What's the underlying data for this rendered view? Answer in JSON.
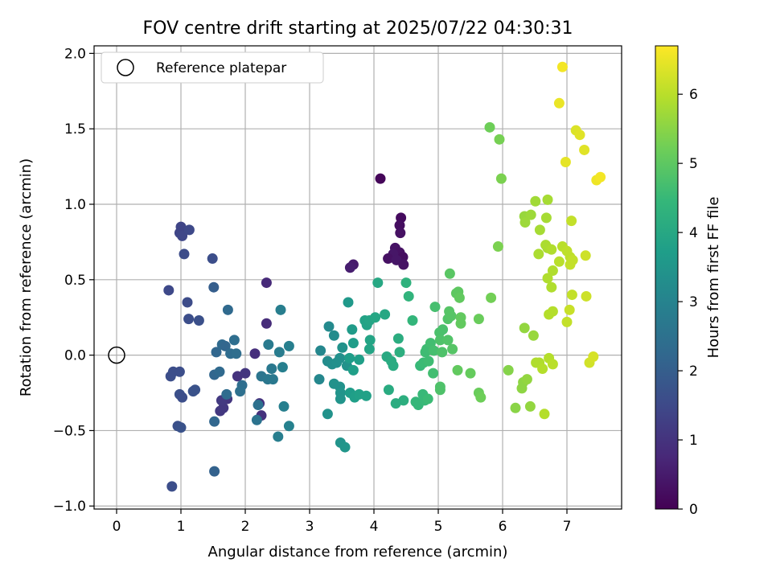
{
  "chart_data": {
    "type": "scatter",
    "title": "FOV centre drift starting at 2025/07/22 04:30:31",
    "xlabel": "Angular distance from reference (arcmin)",
    "ylabel": "Rotation from reference (arcmin)",
    "xlim": [
      -0.35,
      7.85
    ],
    "ylim": [
      -1.02,
      2.05
    ],
    "xticks": [
      0,
      1,
      2,
      3,
      4,
      5,
      6,
      7
    ],
    "yticks": [
      -1.0,
      -0.5,
      0.0,
      0.5,
      1.0,
      1.5,
      2.0
    ],
    "xtick_labels": [
      "0",
      "1",
      "2",
      "3",
      "4",
      "5",
      "6",
      "7"
    ],
    "ytick_labels": [
      "−1.0",
      "−0.5",
      "0.0",
      "0.5",
      "1.0",
      "1.5",
      "2.0"
    ],
    "grid": true,
    "legend": {
      "position": "top-left",
      "entries": [
        "Reference platepar"
      ]
    },
    "reference_point": {
      "x": 0,
      "y": 0
    },
    "colorbar": {
      "label": "Hours from first FF file",
      "range": [
        0,
        6.7
      ],
      "ticks": [
        0,
        1,
        2,
        3,
        4,
        5,
        6
      ],
      "tick_labels": [
        "0",
        "1",
        "2",
        "3",
        "4",
        "5",
        "6"
      ],
      "colormap": "viridis"
    },
    "colormap_stops": [
      "#440154",
      "#482878",
      "#3e4989",
      "#31688e",
      "#26828e",
      "#1f9e89",
      "#35b779",
      "#6ece58",
      "#b5de2b",
      "#fde725"
    ],
    "points": [
      {
        "x": 4.1,
        "y": 1.17,
        "h": 0.1
      },
      {
        "x": 4.42,
        "y": 0.91,
        "h": 0.2
      },
      {
        "x": 4.4,
        "y": 0.86,
        "h": 0.25
      },
      {
        "x": 4.41,
        "y": 0.81,
        "h": 0.3
      },
      {
        "x": 4.33,
        "y": 0.71,
        "h": 0.35
      },
      {
        "x": 4.4,
        "y": 0.68,
        "h": 0.3
      },
      {
        "x": 4.3,
        "y": 0.67,
        "h": 0.4
      },
      {
        "x": 4.45,
        "y": 0.65,
        "h": 0.25
      },
      {
        "x": 4.22,
        "y": 0.64,
        "h": 0.3
      },
      {
        "x": 4.35,
        "y": 0.63,
        "h": 0.4
      },
      {
        "x": 4.46,
        "y": 0.6,
        "h": 0.35
      },
      {
        "x": 3.68,
        "y": 0.6,
        "h": 0.5
      },
      {
        "x": 3.63,
        "y": 0.58,
        "h": 0.55
      },
      {
        "x": 2.33,
        "y": 0.48,
        "h": 0.8
      },
      {
        "x": 2.33,
        "y": 0.21,
        "h": 0.85
      },
      {
        "x": 2.15,
        "y": 0.01,
        "h": 0.9
      },
      {
        "x": 2.25,
        "y": -0.4,
        "h": 0.95
      },
      {
        "x": 1.88,
        "y": -0.14,
        "h": 1.0
      },
      {
        "x": 2.0,
        "y": -0.12,
        "h": 1.05
      },
      {
        "x": 1.72,
        "y": -0.29,
        "h": 1.05
      },
      {
        "x": 1.66,
        "y": -0.35,
        "h": 1.1
      },
      {
        "x": 1.61,
        "y": -0.37,
        "h": 1.1
      },
      {
        "x": 1.63,
        "y": -0.3,
        "h": 1.15
      },
      {
        "x": 2.22,
        "y": -0.32,
        "h": 0.95
      },
      {
        "x": 1.0,
        "y": 0.85,
        "h": 1.4
      },
      {
        "x": 0.98,
        "y": 0.81,
        "h": 1.4
      },
      {
        "x": 1.02,
        "y": 0.79,
        "h": 1.45
      },
      {
        "x": 1.13,
        "y": 0.83,
        "h": 1.5
      },
      {
        "x": 1.05,
        "y": 0.67,
        "h": 1.55
      },
      {
        "x": 1.49,
        "y": 0.64,
        "h": 1.6
      },
      {
        "x": 0.81,
        "y": 0.43,
        "h": 1.5
      },
      {
        "x": 1.1,
        "y": 0.35,
        "h": 1.55
      },
      {
        "x": 1.12,
        "y": 0.24,
        "h": 1.6
      },
      {
        "x": 1.28,
        "y": 0.23,
        "h": 1.65
      },
      {
        "x": 0.88,
        "y": -0.11,
        "h": 1.6
      },
      {
        "x": 0.98,
        "y": -0.11,
        "h": 1.6
      },
      {
        "x": 0.84,
        "y": -0.14,
        "h": 1.6
      },
      {
        "x": 0.98,
        "y": -0.26,
        "h": 1.65
      },
      {
        "x": 1.02,
        "y": -0.28,
        "h": 1.6
      },
      {
        "x": 1.19,
        "y": -0.24,
        "h": 1.7
      },
      {
        "x": 1.22,
        "y": -0.23,
        "h": 1.7
      },
      {
        "x": 0.95,
        "y": -0.47,
        "h": 1.65
      },
      {
        "x": 1.0,
        "y": -0.48,
        "h": 1.7
      },
      {
        "x": 0.86,
        "y": -0.87,
        "h": 1.6
      },
      {
        "x": 1.51,
        "y": 0.45,
        "h": 2.0
      },
      {
        "x": 1.73,
        "y": 0.3,
        "h": 2.3
      },
      {
        "x": 1.55,
        "y": 0.02,
        "h": 2.2
      },
      {
        "x": 1.64,
        "y": 0.07,
        "h": 2.3
      },
      {
        "x": 1.69,
        "y": 0.06,
        "h": 2.2
      },
      {
        "x": 1.77,
        "y": 0.01,
        "h": 2.35
      },
      {
        "x": 1.86,
        "y": 0.01,
        "h": 2.4
      },
      {
        "x": 1.83,
        "y": 0.1,
        "h": 2.4
      },
      {
        "x": 1.52,
        "y": -0.13,
        "h": 2.2
      },
      {
        "x": 1.6,
        "y": -0.11,
        "h": 2.3
      },
      {
        "x": 1.71,
        "y": -0.26,
        "h": 2.35
      },
      {
        "x": 1.52,
        "y": -0.44,
        "h": 2.2
      },
      {
        "x": 1.52,
        "y": -0.77,
        "h": 2.1
      },
      {
        "x": 1.95,
        "y": -0.2,
        "h": 2.4
      },
      {
        "x": 1.92,
        "y": -0.24,
        "h": 2.45
      },
      {
        "x": 2.2,
        "y": -0.33,
        "h": 2.5
      },
      {
        "x": 2.18,
        "y": -0.43,
        "h": 2.55
      },
      {
        "x": 2.25,
        "y": -0.14,
        "h": 2.6
      },
      {
        "x": 2.35,
        "y": -0.16,
        "h": 2.65
      },
      {
        "x": 2.43,
        "y": -0.16,
        "h": 2.7
      },
      {
        "x": 2.41,
        "y": -0.09,
        "h": 2.7
      },
      {
        "x": 2.36,
        "y": 0.07,
        "h": 2.75
      },
      {
        "x": 2.53,
        "y": 0.02,
        "h": 2.8
      },
      {
        "x": 2.55,
        "y": 0.3,
        "h": 2.85
      },
      {
        "x": 2.68,
        "y": 0.06,
        "h": 2.9
      },
      {
        "x": 2.58,
        "y": -0.08,
        "h": 2.9
      },
      {
        "x": 2.6,
        "y": -0.34,
        "h": 2.9
      },
      {
        "x": 2.68,
        "y": -0.47,
        "h": 2.95
      },
      {
        "x": 2.51,
        "y": -0.54,
        "h": 2.85
      },
      {
        "x": 3.17,
        "y": 0.03,
        "h": 3.1
      },
      {
        "x": 3.15,
        "y": -0.16,
        "h": 3.1
      },
      {
        "x": 3.3,
        "y": 0.19,
        "h": 3.2
      },
      {
        "x": 3.38,
        "y": 0.13,
        "h": 3.25
      },
      {
        "x": 3.28,
        "y": -0.04,
        "h": 3.25
      },
      {
        "x": 3.35,
        "y": -0.06,
        "h": 3.3
      },
      {
        "x": 3.42,
        "y": -0.05,
        "h": 3.35
      },
      {
        "x": 3.47,
        "y": -0.02,
        "h": 3.35
      },
      {
        "x": 3.51,
        "y": 0.05,
        "h": 3.4
      },
      {
        "x": 3.58,
        "y": -0.07,
        "h": 3.4
      },
      {
        "x": 3.38,
        "y": -0.19,
        "h": 3.4
      },
      {
        "x": 3.47,
        "y": -0.21,
        "h": 3.4
      },
      {
        "x": 3.48,
        "y": -0.25,
        "h": 3.45
      },
      {
        "x": 3.48,
        "y": -0.29,
        "h": 3.45
      },
      {
        "x": 3.28,
        "y": -0.39,
        "h": 3.4
      },
      {
        "x": 3.48,
        "y": -0.58,
        "h": 3.45
      },
      {
        "x": 3.55,
        "y": -0.61,
        "h": 3.5
      },
      {
        "x": 3.6,
        "y": 0.35,
        "h": 3.6
      },
      {
        "x": 3.66,
        "y": 0.17,
        "h": 3.65
      },
      {
        "x": 3.68,
        "y": 0.08,
        "h": 3.7
      },
      {
        "x": 3.62,
        "y": -0.02,
        "h": 3.7
      },
      {
        "x": 3.68,
        "y": -0.1,
        "h": 3.75
      },
      {
        "x": 3.77,
        "y": -0.03,
        "h": 3.75
      },
      {
        "x": 3.63,
        "y": -0.25,
        "h": 3.7
      },
      {
        "x": 3.7,
        "y": -0.28,
        "h": 3.75
      },
      {
        "x": 3.77,
        "y": -0.26,
        "h": 3.8
      },
      {
        "x": 3.88,
        "y": -0.27,
        "h": 3.8
      },
      {
        "x": 3.86,
        "y": 0.23,
        "h": 3.85
      },
      {
        "x": 3.89,
        "y": 0.2,
        "h": 3.85
      },
      {
        "x": 3.93,
        "y": 0.23,
        "h": 3.9
      },
      {
        "x": 4.02,
        "y": 0.25,
        "h": 3.95
      },
      {
        "x": 4.06,
        "y": 0.48,
        "h": 4.0
      },
      {
        "x": 4.17,
        "y": 0.27,
        "h": 4.0
      },
      {
        "x": 3.94,
        "y": 0.1,
        "h": 3.9
      },
      {
        "x": 3.93,
        "y": 0.04,
        "h": 3.9
      },
      {
        "x": 4.2,
        "y": -0.01,
        "h": 4.05
      },
      {
        "x": 4.27,
        "y": -0.04,
        "h": 4.1
      },
      {
        "x": 4.3,
        "y": -0.07,
        "h": 4.1
      },
      {
        "x": 4.38,
        "y": 0.11,
        "h": 4.15
      },
      {
        "x": 4.4,
        "y": 0.02,
        "h": 4.2
      },
      {
        "x": 4.23,
        "y": -0.23,
        "h": 4.1
      },
      {
        "x": 4.46,
        "y": -0.3,
        "h": 4.2
      },
      {
        "x": 4.34,
        "y": -0.32,
        "h": 4.15
      },
      {
        "x": 4.5,
        "y": 0.48,
        "h": 4.3
      },
      {
        "x": 4.54,
        "y": 0.39,
        "h": 4.35
      },
      {
        "x": 4.6,
        "y": 0.23,
        "h": 4.4
      },
      {
        "x": 4.65,
        "y": -0.31,
        "h": 4.45
      },
      {
        "x": 4.69,
        "y": -0.33,
        "h": 4.45
      },
      {
        "x": 4.76,
        "y": -0.26,
        "h": 4.5
      },
      {
        "x": 4.79,
        "y": -0.3,
        "h": 4.5
      },
      {
        "x": 4.84,
        "y": -0.29,
        "h": 4.55
      },
      {
        "x": 4.72,
        "y": -0.07,
        "h": 4.5
      },
      {
        "x": 4.77,
        "y": -0.05,
        "h": 4.55
      },
      {
        "x": 4.8,
        "y": 0.02,
        "h": 4.6
      },
      {
        "x": 4.82,
        "y": 0.04,
        "h": 4.6
      },
      {
        "x": 4.88,
        "y": 0.08,
        "h": 4.65
      },
      {
        "x": 4.85,
        "y": -0.04,
        "h": 4.6
      },
      {
        "x": 4.92,
        "y": -0.12,
        "h": 4.65
      },
      {
        "x": 4.93,
        "y": 0.03,
        "h": 4.7
      },
      {
        "x": 4.95,
        "y": 0.32,
        "h": 4.7
      },
      {
        "x": 5.02,
        "y": 0.15,
        "h": 4.75
      },
      {
        "x": 5.07,
        "y": 0.17,
        "h": 4.75
      },
      {
        "x": 5.03,
        "y": 0.1,
        "h": 4.8
      },
      {
        "x": 5.06,
        "y": 0.02,
        "h": 4.8
      },
      {
        "x": 5.03,
        "y": -0.21,
        "h": 4.8
      },
      {
        "x": 5.03,
        "y": -0.23,
        "h": 4.8
      },
      {
        "x": 5.15,
        "y": 0.24,
        "h": 4.85
      },
      {
        "x": 5.17,
        "y": 0.29,
        "h": 4.9
      },
      {
        "x": 5.2,
        "y": 0.26,
        "h": 4.9
      },
      {
        "x": 5.15,
        "y": 0.1,
        "h": 4.85
      },
      {
        "x": 5.22,
        "y": 0.04,
        "h": 4.9
      },
      {
        "x": 5.18,
        "y": 0.54,
        "h": 4.95
      },
      {
        "x": 5.28,
        "y": 0.41,
        "h": 5.0
      },
      {
        "x": 5.31,
        "y": 0.42,
        "h": 5.0
      },
      {
        "x": 5.33,
        "y": 0.38,
        "h": 5.05
      },
      {
        "x": 5.35,
        "y": 0.25,
        "h": 5.05
      },
      {
        "x": 5.35,
        "y": 0.21,
        "h": 5.05
      },
      {
        "x": 5.3,
        "y": -0.1,
        "h": 5.05
      },
      {
        "x": 5.5,
        "y": -0.12,
        "h": 5.1
      },
      {
        "x": 5.63,
        "y": 0.24,
        "h": 5.15
      },
      {
        "x": 5.63,
        "y": -0.25,
        "h": 5.15
      },
      {
        "x": 5.66,
        "y": -0.28,
        "h": 5.2
      },
      {
        "x": 5.82,
        "y": 0.38,
        "h": 5.25
      },
      {
        "x": 5.8,
        "y": 1.51,
        "h": 5.2
      },
      {
        "x": 5.95,
        "y": 1.43,
        "h": 5.3
      },
      {
        "x": 5.98,
        "y": 1.17,
        "h": 5.35
      },
      {
        "x": 5.93,
        "y": 0.72,
        "h": 5.35
      },
      {
        "x": 6.09,
        "y": -0.1,
        "h": 5.45
      },
      {
        "x": 6.2,
        "y": -0.35,
        "h": 5.5
      },
      {
        "x": 6.3,
        "y": -0.22,
        "h": 5.55
      },
      {
        "x": 6.32,
        "y": -0.18,
        "h": 5.55
      },
      {
        "x": 6.38,
        "y": -0.16,
        "h": 5.6
      },
      {
        "x": 6.43,
        "y": -0.34,
        "h": 5.6
      },
      {
        "x": 6.34,
        "y": 0.18,
        "h": 5.6
      },
      {
        "x": 6.48,
        "y": 0.13,
        "h": 5.65
      },
      {
        "x": 6.34,
        "y": 0.92,
        "h": 5.65
      },
      {
        "x": 6.35,
        "y": 0.88,
        "h": 5.7
      },
      {
        "x": 6.44,
        "y": 0.93,
        "h": 5.7
      },
      {
        "x": 6.51,
        "y": 1.02,
        "h": 5.75
      },
      {
        "x": 6.7,
        "y": 1.03,
        "h": 5.8
      },
      {
        "x": 6.68,
        "y": 0.91,
        "h": 5.8
      },
      {
        "x": 6.58,
        "y": 0.83,
        "h": 5.8
      },
      {
        "x": 6.56,
        "y": 0.67,
        "h": 5.85
      },
      {
        "x": 6.67,
        "y": 0.73,
        "h": 5.85
      },
      {
        "x": 6.7,
        "y": 0.71,
        "h": 5.85
      },
      {
        "x": 6.76,
        "y": 0.7,
        "h": 5.9
      },
      {
        "x": 6.78,
        "y": 0.56,
        "h": 5.9
      },
      {
        "x": 6.7,
        "y": 0.51,
        "h": 5.9
      },
      {
        "x": 6.76,
        "y": 0.45,
        "h": 5.9
      },
      {
        "x": 6.78,
        "y": 0.29,
        "h": 5.95
      },
      {
        "x": 6.72,
        "y": 0.27,
        "h": 5.95
      },
      {
        "x": 6.52,
        "y": -0.05,
        "h": 5.9
      },
      {
        "x": 6.57,
        "y": -0.05,
        "h": 5.9
      },
      {
        "x": 6.62,
        "y": -0.09,
        "h": 5.95
      },
      {
        "x": 6.72,
        "y": -0.02,
        "h": 5.95
      },
      {
        "x": 6.78,
        "y": -0.06,
        "h": 6.0
      },
      {
        "x": 6.65,
        "y": -0.39,
        "h": 5.95
      },
      {
        "x": 6.88,
        "y": 0.62,
        "h": 6.0
      },
      {
        "x": 6.93,
        "y": 0.72,
        "h": 6.0
      },
      {
        "x": 7.0,
        "y": 0.69,
        "h": 6.05
      },
      {
        "x": 7.05,
        "y": 0.65,
        "h": 6.05
      },
      {
        "x": 7.05,
        "y": 0.6,
        "h": 6.1
      },
      {
        "x": 7.09,
        "y": 0.63,
        "h": 6.1
      },
      {
        "x": 7.07,
        "y": 0.89,
        "h": 6.1
      },
      {
        "x": 7.08,
        "y": 0.4,
        "h": 6.1
      },
      {
        "x": 7.0,
        "y": 0.22,
        "h": 6.1
      },
      {
        "x": 7.04,
        "y": 0.3,
        "h": 6.15
      },
      {
        "x": 7.3,
        "y": 0.39,
        "h": 6.2
      },
      {
        "x": 7.29,
        "y": 0.66,
        "h": 6.2
      },
      {
        "x": 7.35,
        "y": -0.05,
        "h": 6.25
      },
      {
        "x": 7.41,
        "y": -0.01,
        "h": 6.3
      },
      {
        "x": 7.14,
        "y": 1.49,
        "h": 6.35
      },
      {
        "x": 7.2,
        "y": 1.46,
        "h": 6.4
      },
      {
        "x": 7.27,
        "y": 1.36,
        "h": 6.4
      },
      {
        "x": 6.98,
        "y": 1.28,
        "h": 6.45
      },
      {
        "x": 6.88,
        "y": 1.67,
        "h": 6.5
      },
      {
        "x": 6.93,
        "y": 1.91,
        "h": 6.6
      },
      {
        "x": 7.46,
        "y": 1.16,
        "h": 6.55
      },
      {
        "x": 7.52,
        "y": 1.18,
        "h": 6.6
      }
    ]
  }
}
